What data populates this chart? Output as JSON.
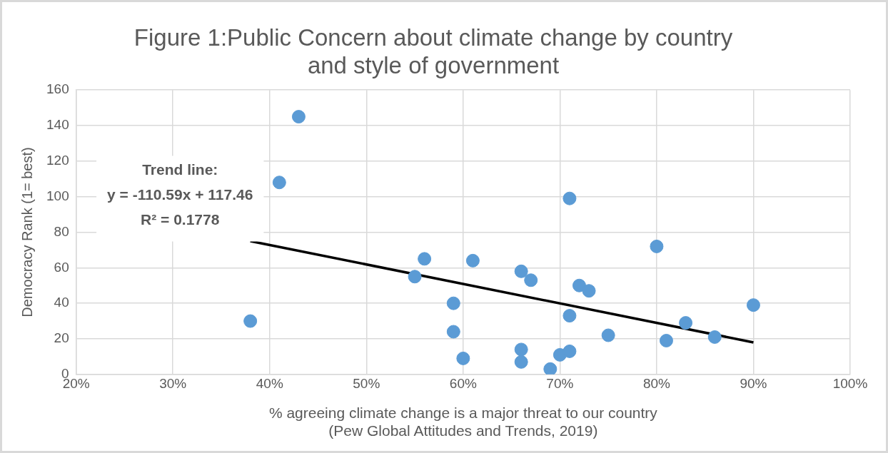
{
  "chart_data": {
    "type": "scatter",
    "title": "Figure 1:Public Concern about climate change by country and style of government",
    "xlabel": "% agreeing climate change is a major threat to our country\n(Pew Global Attitudes and Trends, 2019)",
    "ylabel": "Democracy Rank (1= best)",
    "series": [
      {
        "color": "#5b9bd5",
        "marker": "circle",
        "x": [
          38,
          41,
          43,
          55,
          56,
          59,
          59,
          60,
          61,
          66,
          66,
          66,
          67,
          69,
          70,
          71,
          71,
          71,
          72,
          73,
          75,
          80,
          81,
          83,
          86,
          90
        ],
        "values": [
          30,
          108,
          145,
          55,
          65,
          40,
          24,
          9,
          64,
          58,
          14,
          7,
          53,
          3,
          11,
          99,
          33,
          13,
          50,
          47,
          22,
          72,
          19,
          29,
          21,
          39
        ]
      },
      {
        "type": "line",
        "color": "#000000",
        "marker": "none",
        "x": [
          38,
          90
        ],
        "values": [
          75,
          18
        ]
      }
    ],
    "xlim": [
      20,
      100
    ],
    "xticks": [
      {
        "value": 20,
        "label": "20%"
      },
      {
        "value": 30,
        "label": "30%"
      },
      {
        "value": 40,
        "label": "40%"
      },
      {
        "value": 50,
        "label": "50%"
      },
      {
        "value": 60,
        "label": "60%"
      },
      {
        "value": 70,
        "label": "70%"
      },
      {
        "value": 80,
        "label": "80%"
      },
      {
        "value": 90,
        "label": "90%"
      },
      {
        "value": 100,
        "label": "100%"
      }
    ],
    "ylim": [
      0,
      160
    ],
    "yticks": [
      0,
      20,
      40,
      60,
      80,
      100,
      120,
      140,
      160
    ],
    "annotations": [
      "Trend line:",
      "y = -110.59x + 117.46",
      "R² = 0.1778"
    ],
    "grid": true,
    "legend": false
  }
}
